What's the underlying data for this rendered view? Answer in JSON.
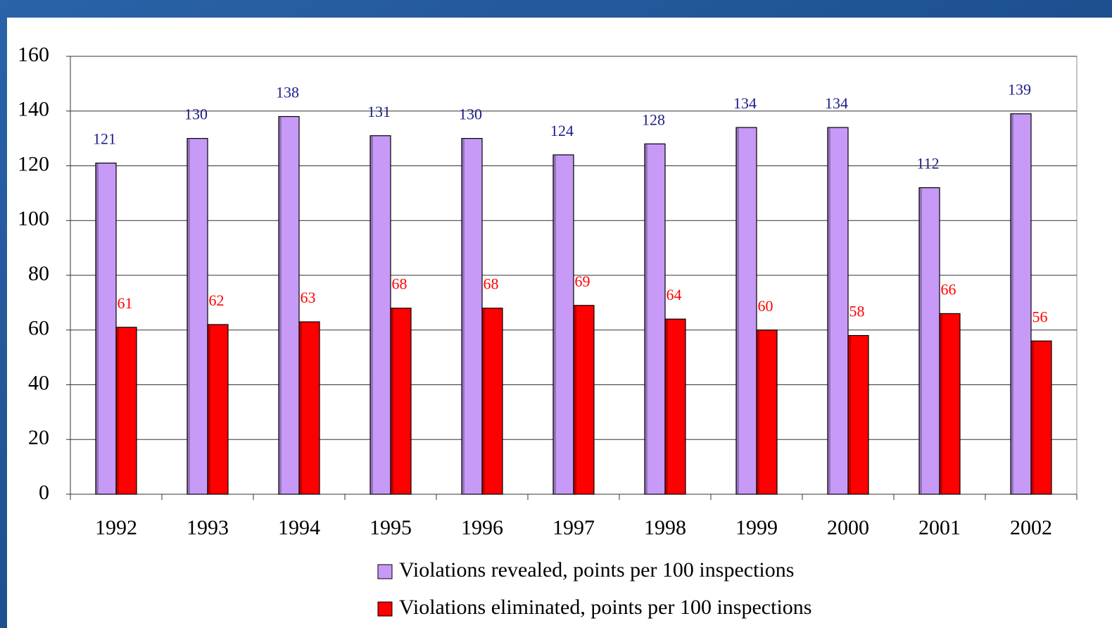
{
  "chart_data": {
    "type": "bar",
    "categories": [
      "1992",
      "1993",
      "1994",
      "1995",
      "1996",
      "1997",
      "1998",
      "1999",
      "2000",
      "2001",
      "2002"
    ],
    "series": [
      {
        "name": "Violations revealed, points per 100 inspections",
        "color": "#c79af7",
        "label_color": "#1c1c8a",
        "values": [
          121,
          130,
          138,
          131,
          130,
          124,
          128,
          134,
          134,
          112,
          139
        ]
      },
      {
        "name": "Violations eliminated, points per 100 inspections",
        "color": "#ff0000",
        "label_color": "#ff0000",
        "values": [
          61,
          62,
          63,
          68,
          68,
          69,
          64,
          60,
          58,
          66,
          56
        ]
      }
    ],
    "ylim": [
      0,
      160
    ],
    "yticks": [
      0,
      20,
      40,
      60,
      80,
      100,
      120,
      140,
      160
    ],
    "grid": true,
    "legend": "bottom"
  }
}
